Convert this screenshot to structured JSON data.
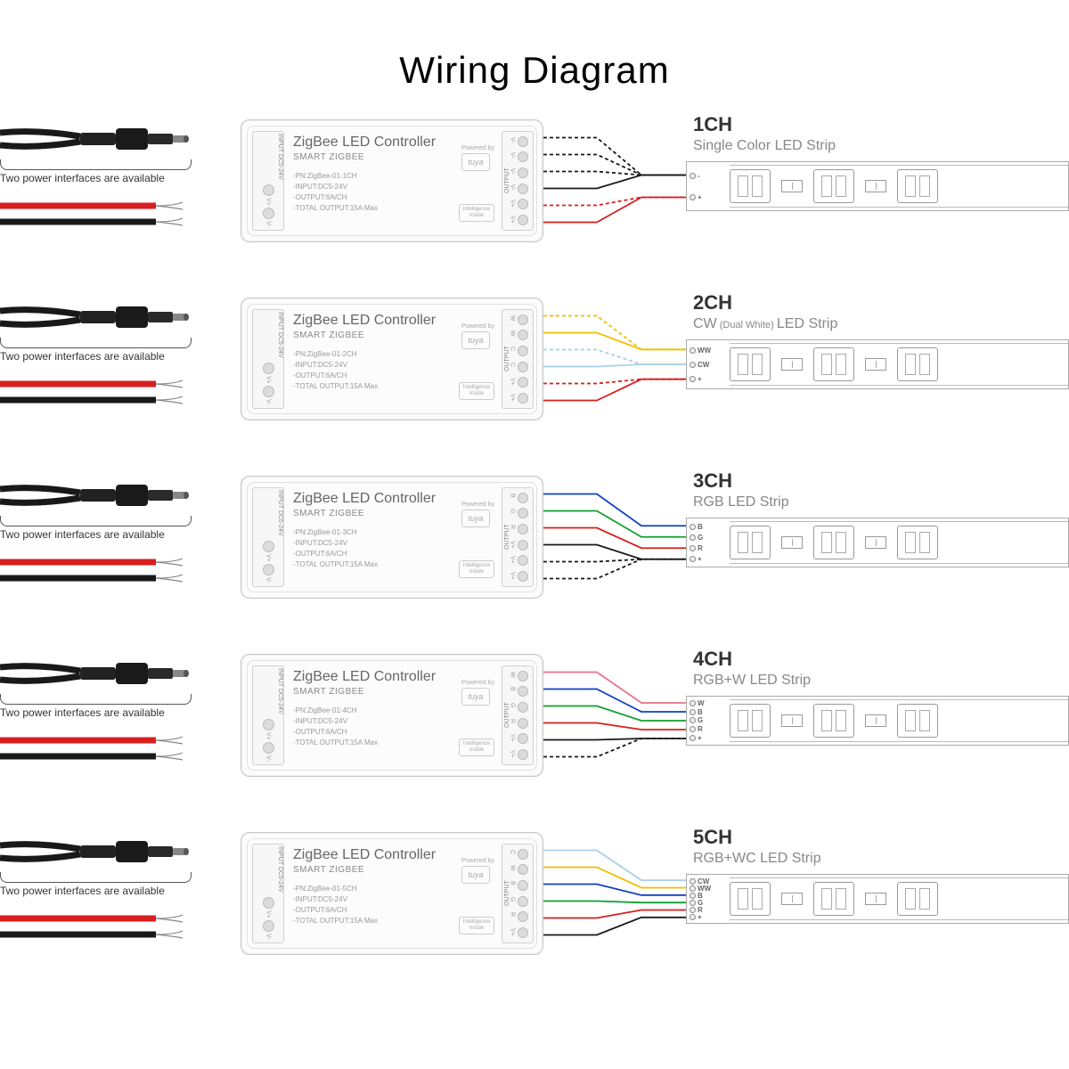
{
  "title": "Wiring Diagram",
  "power_label": "Two power interfaces are available",
  "controller": {
    "title": "ZigBee LED Controller",
    "subtitle": "SMART ZIGBEE",
    "powered_by": "Powered by",
    "brand": "tuya",
    "intel": "Intelligence Inside",
    "input_label": "INPUT DC5-24V",
    "output_label": "OUTPUT",
    "spec_input": "-INPUT:DC5-24V",
    "spec_output": "-OUTPUT:6A/CH",
    "spec_total": "-TOTAL OUTPUT:15A Max"
  },
  "colors": {
    "red": "#d81e1e",
    "black": "#191919",
    "yellow": "#f0c000",
    "lightblue": "#a8d0e8",
    "blue": "#1040c0",
    "green": "#10a030",
    "pink": "#e87090",
    "white_wire": "#d8d8d8",
    "dash": "#cc2020"
  },
  "rows": [
    {
      "ch": "1CH",
      "sub": "Single Color LED Strip",
      "pn": "-PN:ZigBee-01-1CH",
      "out_pins": [
        "V-",
        "V-",
        "V-",
        "V-",
        "V+",
        "V+"
      ],
      "pads": [
        {
          "t": "-"
        },
        {
          "t": "+"
        }
      ],
      "wires": [
        {
          "from": 0,
          "to": 0,
          "c": "black",
          "dash": true
        },
        {
          "from": 1,
          "to": 0,
          "c": "black",
          "dash": true
        },
        {
          "from": 2,
          "to": 0,
          "c": "black",
          "dash": true
        },
        {
          "from": 3,
          "to": 0,
          "c": "black"
        },
        {
          "from": 4,
          "to": 1,
          "c": "red",
          "dash": true
        },
        {
          "from": 5,
          "to": 1,
          "c": "red"
        }
      ]
    },
    {
      "ch": "2CH",
      "sub": "CW LED Strip",
      "sub_note": "(Dual White)",
      "pn": "-PN:ZigBee-01-2CH",
      "out_pins": [
        "W",
        "W",
        "C",
        "C",
        "V+",
        "V+"
      ],
      "pads": [
        {
          "t": "WW"
        },
        {
          "t": "CW"
        },
        {
          "t": "+"
        }
      ],
      "wires": [
        {
          "from": 0,
          "to": 0,
          "c": "yellow",
          "dash": true
        },
        {
          "from": 1,
          "to": 0,
          "c": "yellow"
        },
        {
          "from": 2,
          "to": 1,
          "c": "lightblue",
          "dash": true
        },
        {
          "from": 3,
          "to": 1,
          "c": "lightblue"
        },
        {
          "from": 4,
          "to": 2,
          "c": "red",
          "dash": true
        },
        {
          "from": 5,
          "to": 2,
          "c": "red"
        }
      ]
    },
    {
      "ch": "3CH",
      "sub": "RGB LED Strip",
      "pn": "-PN:ZigBee-01-3CH",
      "out_pins": [
        "B",
        "G",
        "R",
        "V+",
        "V+",
        "V+"
      ],
      "pads": [
        {
          "t": "B"
        },
        {
          "t": "G"
        },
        {
          "t": "R"
        },
        {
          "t": "+"
        }
      ],
      "wires": [
        {
          "from": 0,
          "to": 0,
          "c": "blue"
        },
        {
          "from": 1,
          "to": 1,
          "c": "green"
        },
        {
          "from": 2,
          "to": 2,
          "c": "red"
        },
        {
          "from": 3,
          "to": 3,
          "c": "black"
        },
        {
          "from": 4,
          "to": 3,
          "c": "black",
          "dash": true
        },
        {
          "from": 5,
          "to": 3,
          "c": "black",
          "dash": true
        }
      ]
    },
    {
      "ch": "4CH",
      "sub": "RGB+W LED Strip",
      "pn": "-PN:ZigBee-01-4CH",
      "out_pins": [
        "W",
        "B",
        "G",
        "R",
        "V+",
        "V+"
      ],
      "pads": [
        {
          "t": "W"
        },
        {
          "t": "B"
        },
        {
          "t": "G"
        },
        {
          "t": "R"
        },
        {
          "t": "+"
        }
      ],
      "wires": [
        {
          "from": 0,
          "to": 0,
          "c": "pink"
        },
        {
          "from": 1,
          "to": 1,
          "c": "blue"
        },
        {
          "from": 2,
          "to": 2,
          "c": "green"
        },
        {
          "from": 3,
          "to": 3,
          "c": "red"
        },
        {
          "from": 4,
          "to": 4,
          "c": "black"
        },
        {
          "from": 5,
          "to": 4,
          "c": "black",
          "dash": true
        }
      ]
    },
    {
      "ch": "5CH",
      "sub": "RGB+WC LED Strip",
      "pn": "-PN:ZigBee-01-5CH",
      "out_pins": [
        "C",
        "W",
        "B",
        "G",
        "R",
        "V+"
      ],
      "pads": [
        {
          "t": "CW"
        },
        {
          "t": "WW"
        },
        {
          "t": "B"
        },
        {
          "t": "G"
        },
        {
          "t": "R"
        },
        {
          "t": "+"
        }
      ],
      "wires": [
        {
          "from": 0,
          "to": 0,
          "c": "lightblue"
        },
        {
          "from": 1,
          "to": 1,
          "c": "yellow"
        },
        {
          "from": 2,
          "to": 2,
          "c": "blue"
        },
        {
          "from": 3,
          "to": 3,
          "c": "green"
        },
        {
          "from": 4,
          "to": 4,
          "c": "red"
        },
        {
          "from": 5,
          "to": 5,
          "c": "black"
        }
      ]
    }
  ]
}
